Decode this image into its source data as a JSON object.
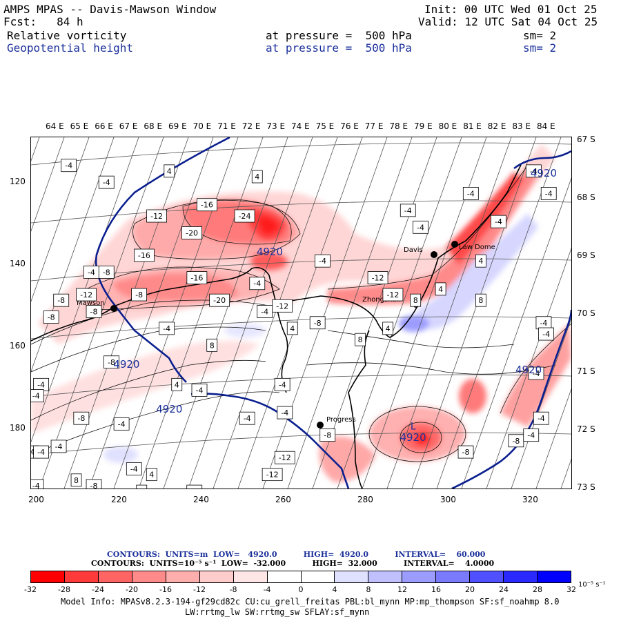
{
  "header": {
    "title": "AMPS MPAS -- Davis-Mawson Window",
    "fcst": "Fcst:   84 h",
    "init": "Init: 00 UTC Wed 01 Oct 25",
    "valid": "Valid: 12 UTC Sat 04 Oct 25",
    "field1": "Relative vorticity",
    "field1_level": "at pressure =  500 hPa",
    "field1_sm": "sm= 2",
    "field2": "Geopotential height",
    "field2_level": "at pressure =  500 hPa",
    "field2_sm": "sm= 2"
  },
  "axes": {
    "lon_labels": [
      "64 E",
      "65 E",
      "66 E",
      "67 E",
      "68 E",
      "69 E",
      "70 E",
      "71 E",
      "72 E",
      "73 E",
      "74 E",
      "75 E",
      "76 E",
      "77 E",
      "78 E",
      "79 E",
      "80 E",
      "81 E",
      "82 E",
      "83 E",
      "84 E"
    ],
    "lat_labels": [
      "67 S",
      "68 S",
      "69 S",
      "70 S",
      "71 S",
      "72 S",
      "73 S"
    ],
    "y_ticks": [
      "120",
      "140",
      "160",
      "180"
    ],
    "x_ticks": [
      "200",
      "220",
      "240",
      "260",
      "280",
      "300",
      "320"
    ]
  },
  "stations": [
    {
      "name": "Mawson"
    },
    {
      "name": "Davis"
    },
    {
      "name": "Zhongshan"
    },
    {
      "name": "Progress"
    },
    {
      "name": "Law Dome"
    }
  ],
  "contour_labels": [
    {
      "text": "-4",
      "c": [
        64.5,
        67.3
      ]
    },
    {
      "text": "-4",
      "c": [
        83.0,
        67.4
      ]
    },
    {
      "text": "-4",
      "c": [
        66.0,
        67.6
      ]
    },
    {
      "text": "4",
      "c": [
        72.0,
        67.5
      ]
    },
    {
      "text": "4",
      "c": [
        68.5,
        67.4
      ]
    },
    {
      "text": "-4",
      "c": [
        80.5,
        67.8
      ]
    },
    {
      "text": "-4",
      "c": [
        83.6,
        67.8
      ]
    },
    {
      "text": "-4",
      "c": [
        78.0,
        68.1
      ]
    },
    {
      "text": "-16",
      "c": [
        70.0,
        68.0
      ]
    },
    {
      "text": "-12",
      "c": [
        68.0,
        68.2
      ]
    },
    {
      "text": "-24",
      "c": [
        71.5,
        68.2
      ]
    },
    {
      "text": "-20",
      "c": [
        69.4,
        68.5
      ]
    },
    {
      "text": "-4",
      "c": [
        81.6,
        68.3
      ]
    },
    {
      "text": "-4",
      "c": [
        78.5,
        68.4
      ]
    },
    {
      "text": "-16",
      "c": [
        67.5,
        68.9
      ]
    },
    {
      "text": "-4",
      "c": [
        65.4,
        69.2
      ]
    },
    {
      "text": "-8",
      "c": [
        66.0,
        69.2
      ]
    },
    {
      "text": "-16",
      "c": [
        69.6,
        69.3
      ]
    },
    {
      "text": "-4",
      "c": [
        74.6,
        69.0
      ]
    },
    {
      "text": "-12",
      "c": [
        76.8,
        69.3
      ]
    },
    {
      "text": "-4",
      "c": [
        72.0,
        69.4
      ]
    },
    {
      "text": "4",
      "c": [
        80.9,
        69.0
      ]
    },
    {
      "text": "4",
      "c": [
        79.3,
        69.5
      ]
    },
    {
      "text": "-8",
      "c": [
        64.2,
        69.7
      ]
    },
    {
      "text": "-12",
      "c": [
        65.2,
        69.6
      ]
    },
    {
      "text": "-8",
      "c": [
        67.3,
        69.6
      ]
    },
    {
      "text": "-20",
      "c": [
        70.5,
        69.7
      ]
    },
    {
      "text": "-12",
      "c": [
        73.0,
        69.8
      ]
    },
    {
      "text": "-12",
      "c": [
        77.4,
        69.6
      ]
    },
    {
      "text": "8",
      "c": [
        78.3,
        69.7
      ]
    },
    {
      "text": "8",
      "c": [
        80.9,
        69.7
      ]
    },
    {
      "text": "-8",
      "c": [
        63.8,
        70.0
      ]
    },
    {
      "text": "-8",
      "c": [
        65.5,
        69.9
      ]
    },
    {
      "text": "-4",
      "c": [
        72.3,
        69.9
      ]
    },
    {
      "text": "-8",
      "c": [
        74.4,
        70.1
      ]
    },
    {
      "text": "-4",
      "c": [
        68.4,
        70.2
      ]
    },
    {
      "text": "4",
      "c": [
        73.4,
        70.2
      ]
    },
    {
      "text": "-4",
      "c": [
        83.4,
        70.1
      ]
    },
    {
      "text": "8",
      "c": [
        70.2,
        70.5
      ]
    },
    {
      "text": "8",
      "c": [
        76.1,
        70.4
      ]
    },
    {
      "text": "4",
      "c": [
        77.2,
        70.2
      ]
    },
    {
      "text": "-4",
      "c": [
        83.5,
        70.3
      ]
    },
    {
      "text": "-8",
      "c": [
        66.2,
        70.8
      ]
    },
    {
      "text": "-4",
      "c": [
        73.0,
        71.2
      ]
    },
    {
      "text": "4",
      "c": [
        68.8,
        71.2
      ]
    },
    {
      "text": "-4",
      "c": [
        69.7,
        71.3
      ]
    },
    {
      "text": "-4",
      "c": [
        83.1,
        71.0
      ]
    },
    {
      "text": "-4",
      "c": [
        63.4,
        71.2
      ]
    },
    {
      "text": "-4",
      "c": [
        63.2,
        71.4
      ]
    },
    {
      "text": "-4",
      "c": [
        71.6,
        71.8
      ]
    },
    {
      "text": "-4",
      "c": [
        73.1,
        71.7
      ]
    },
    {
      "text": "-8",
      "c": [
        65.0,
        71.8
      ]
    },
    {
      "text": "-4",
      "c": [
        66.6,
        71.9
      ]
    },
    {
      "text": "-4",
      "c": [
        83.3,
        71.8
      ]
    },
    {
      "text": "-8",
      "c": [
        74.8,
        72.1
      ]
    },
    {
      "text": "-12",
      "c": [
        73.1,
        72.5
      ]
    },
    {
      "text": "-8",
      "c": [
        82.3,
        72.2
      ]
    },
    {
      "text": "-8",
      "c": [
        80.3,
        72.4
      ]
    },
    {
      "text": "-4",
      "c": [
        63.0,
        72.4
      ]
    },
    {
      "text": "-4",
      "c": [
        63.4,
        72.4
      ]
    },
    {
      "text": "-4",
      "c": [
        64.1,
        72.3
      ]
    },
    {
      "text": "-4",
      "c": [
        82.9,
        72.1
      ]
    },
    {
      "text": "-12",
      "c": [
        72.6,
        72.8
      ]
    },
    {
      "text": "-4",
      "c": [
        67.1,
        72.7
      ]
    },
    {
      "text": "4",
      "c": [
        67.8,
        72.8
      ]
    },
    {
      "text": "-8",
      "c": [
        65.5,
        73.0
      ]
    },
    {
      "text": "-4",
      "c": [
        63.2,
        73.0
      ]
    },
    {
      "text": "8",
      "c": [
        64.8,
        72.9
      ]
    },
    {
      "text": "-4",
      "c": [
        69.5,
        73.1
      ]
    },
    {
      "text": "4",
      "c": [
        67.4,
        73.1
      ]
    },
    {
      "text": "8",
      "c": [
        66.6,
        73.4
      ]
    }
  ],
  "height_labels": [
    {
      "text": "4920",
      "c": [
        66.8,
        70.9
      ]
    },
    {
      "text": "4920",
      "c": [
        68.5,
        71.7
      ]
    },
    {
      "text": "4920",
      "c": [
        72.5,
        68.9
      ]
    },
    {
      "text": "4920",
      "c": [
        82.8,
        71.0
      ]
    },
    {
      "text": "4920",
      "c": [
        78.2,
        72.2
      ]
    },
    {
      "text": "4920",
      "c": [
        83.4,
        67.5
      ]
    }
  ],
  "low_marker": {
    "text": "L",
    "c": [
      78.1,
      72.0
    ]
  },
  "contour_info": {
    "line1": "CONTOURS:  UNITS=m  LOW=   4920.0          HIGH=  4920.0          INTERVAL=    60.000",
    "line2": "CONTOURS:  UNITS=10⁻⁵ s⁻¹  LOW=  -32.000          HIGH=  32.000          INTERVAL=    4.0000"
  },
  "colorbar": {
    "colors": [
      "#ff0000",
      "#ff3a3a",
      "#ff6464",
      "#ff8a8a",
      "#ffaeae",
      "#ffcccc",
      "#ffe6e6",
      "#ffffff",
      "#ffffff",
      "#e0e0ff",
      "#c0c0ff",
      "#9c9cff",
      "#7a7aff",
      "#5050ff",
      "#2a2aff",
      "#0000ff"
    ],
    "labels": [
      "-32",
      "-28",
      "-24",
      "-20",
      "-16",
      "-12",
      "-8",
      "-4",
      "0",
      "4",
      "8",
      "12",
      "16",
      "20",
      "24",
      "28",
      "32"
    ],
    "unit": "10⁻⁵ s⁻¹"
  },
  "model_info": {
    "line1": "Model Info: MPASv8.2.3-194-gf29cd82c CU:cu_grell_freitas PBL:bl_mynn MP:mp_thompson SF:sf_noahmp 8.0",
    "line2": "LW:rrtmg_lw SW:rrtmg_sw SFLAY:sf_mynn"
  },
  "colors": {
    "height_contour": "#0a1f8f",
    "label_blue": "#1a2f9a"
  }
}
